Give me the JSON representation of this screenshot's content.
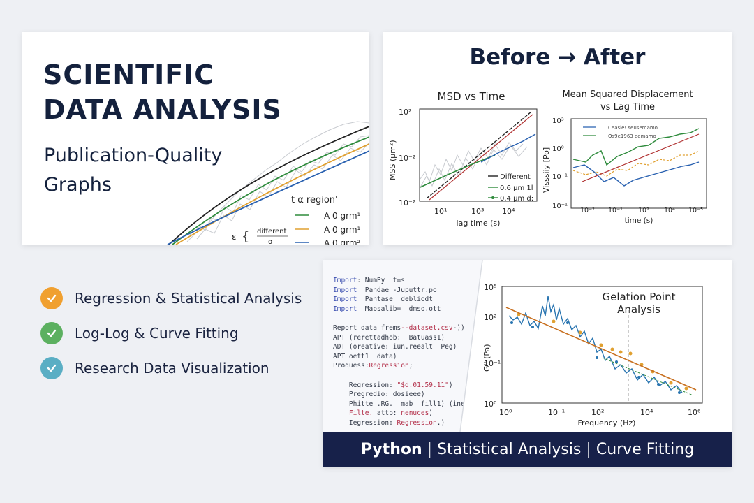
{
  "title_card": {
    "headline_line1": "SCIENTIFIC",
    "headline_line2": "DATA ANALYSIS",
    "subhead_line1": "Publication-Quality",
    "subhead_line2": "Graphs",
    "legend_title": "t α region'",
    "legend_entries": [
      {
        "label": "A 0 grm¹",
        "color": "#2e8b3c"
      },
      {
        "label": "A 0 grm¹",
        "color": "#e0a030"
      },
      {
        "label": "A 0 grm²",
        "color": "#2860b0"
      }
    ],
    "annotation_left": "ε",
    "annotation_text": "different",
    "annotation_below": "σ"
  },
  "before_after": {
    "title": "Before → After",
    "left_chart": {
      "title": "MSD vs Time",
      "ylabel": "MSS (μm²)",
      "xlabel": "lag time (s)",
      "y_ticks": [
        "10²",
        "10⁻²",
        "10⁻²"
      ],
      "x_ticks": [
        "10¹",
        "10³",
        "10⁴"
      ],
      "legend": [
        {
          "label": "Different",
          "color": "#222222"
        },
        {
          "label": "0.6 μm 1l",
          "color": "#2e8b3c"
        },
        {
          "label": "0.4 μm d:",
          "color": "#2e8b3c"
        }
      ]
    },
    "right_chart": {
      "title_line1": "Mean Squared Displacement",
      "title_line2": "vs Lag Time",
      "ylabel": "Visssiiy [Po]",
      "xlabel": "time (s)",
      "y_ticks": [
        "10³",
        "10⁰",
        "10⁻¹",
        "10⁻¹"
      ],
      "x_ticks": [
        "10⁻²",
        "10⁻¹",
        "10²",
        "10⁴",
        "10⁻⁵"
      ],
      "legend": [
        "Ceasie! seusemamo",
        "Os9e1963 eemamo"
      ]
    }
  },
  "features": [
    {
      "label": "Regression & Statistical Analysis",
      "color": "#f0a030"
    },
    {
      "label": "Log-Log & Curve Fitting",
      "color": "#5cb060"
    },
    {
      "label": "Research Data Visualization",
      "color": "#5aaec4"
    }
  ],
  "code": {
    "lines": [
      {
        "parts": [
          [
            "kw",
            "Import"
          ],
          [
            "",
            ": NumPy  t=s"
          ]
        ]
      },
      {
        "parts": [
          [
            "kw",
            "Import"
          ],
          [
            "",
            "  Pandae -Juputtr.po"
          ]
        ]
      },
      {
        "parts": [
          [
            "kw",
            "Import"
          ],
          [
            "",
            "  Pantase  debliodt"
          ]
        ]
      },
      {
        "parts": [
          [
            "kw",
            "Import"
          ],
          [
            "",
            "  Mapsalib=  dmso.ott"
          ]
        ]
      },
      {
        "parts": [
          [
            "",
            ""
          ]
        ]
      },
      {
        "parts": [
          [
            "",
            "Report data frems"
          ],
          [
            "str",
            "--dataset.csv"
          ],
          [
            "",
            "-"
          ],
          [
            "",
            "))"
          ]
        ]
      },
      {
        "parts": [
          [
            "",
            "APT (rerettadhob:  Batuass1)"
          ]
        ]
      },
      {
        "parts": [
          [
            "",
            "ADT (oreative: iun.reealt  Peg)"
          ]
        ]
      },
      {
        "parts": [
          [
            "",
            "APT oett1  data)"
          ]
        ]
      },
      {
        "parts": [
          [
            "",
            "Proquess:"
          ],
          [
            "str",
            "Regression"
          ],
          [
            "",
            ";"
          ]
        ]
      },
      {
        "parts": [
          [
            "",
            ""
          ]
        ]
      },
      {
        "parts": [
          [
            "",
            "    Regression: "
          ],
          [
            "str",
            "\"$d.01.59.11\""
          ],
          [
            "",
            ")"
          ]
        ]
      },
      {
        "parts": [
          [
            "",
            "    Pregredio: dosieee)"
          ]
        ]
      },
      {
        "parts": [
          [
            "",
            "    Phitte .RG.  mab  fill1) (ineat"
          ]
        ]
      },
      {
        "parts": [
          [
            "str",
            "    Filte."
          ],
          [
            "",
            " attb: "
          ],
          [
            "str",
            "nenuces"
          ],
          [
            "",
            ")"
          ]
        ]
      },
      {
        "parts": [
          [
            "",
            "    Iegression: "
          ],
          [
            "str",
            "Regression"
          ],
          [
            "",
            ".)"
          ]
        ]
      }
    ]
  },
  "gelation_chart": {
    "title_line1": "Gelation Point",
    "title_line2": "Analysis",
    "ylabel": "G'' (Pa)",
    "xlabel": "Frequency (Hz)",
    "y_ticks": [
      "10⁵",
      "10²",
      "10⁻¹",
      "10⁰"
    ],
    "x_ticks": [
      "10⁰",
      "10⁻¹",
      "10²",
      "10⁴",
      "10⁶"
    ]
  },
  "banner": {
    "part1": "Python",
    "part2": "Statistical Analysis",
    "part3": "Curve Fitting",
    "separator": "|"
  },
  "colors": {
    "navy": "#14213d",
    "banner": "#17214a",
    "fit_red": "#b03030",
    "series_green": "#2e8b3c",
    "series_orange": "#e0a030",
    "series_blue": "#2860b0"
  }
}
